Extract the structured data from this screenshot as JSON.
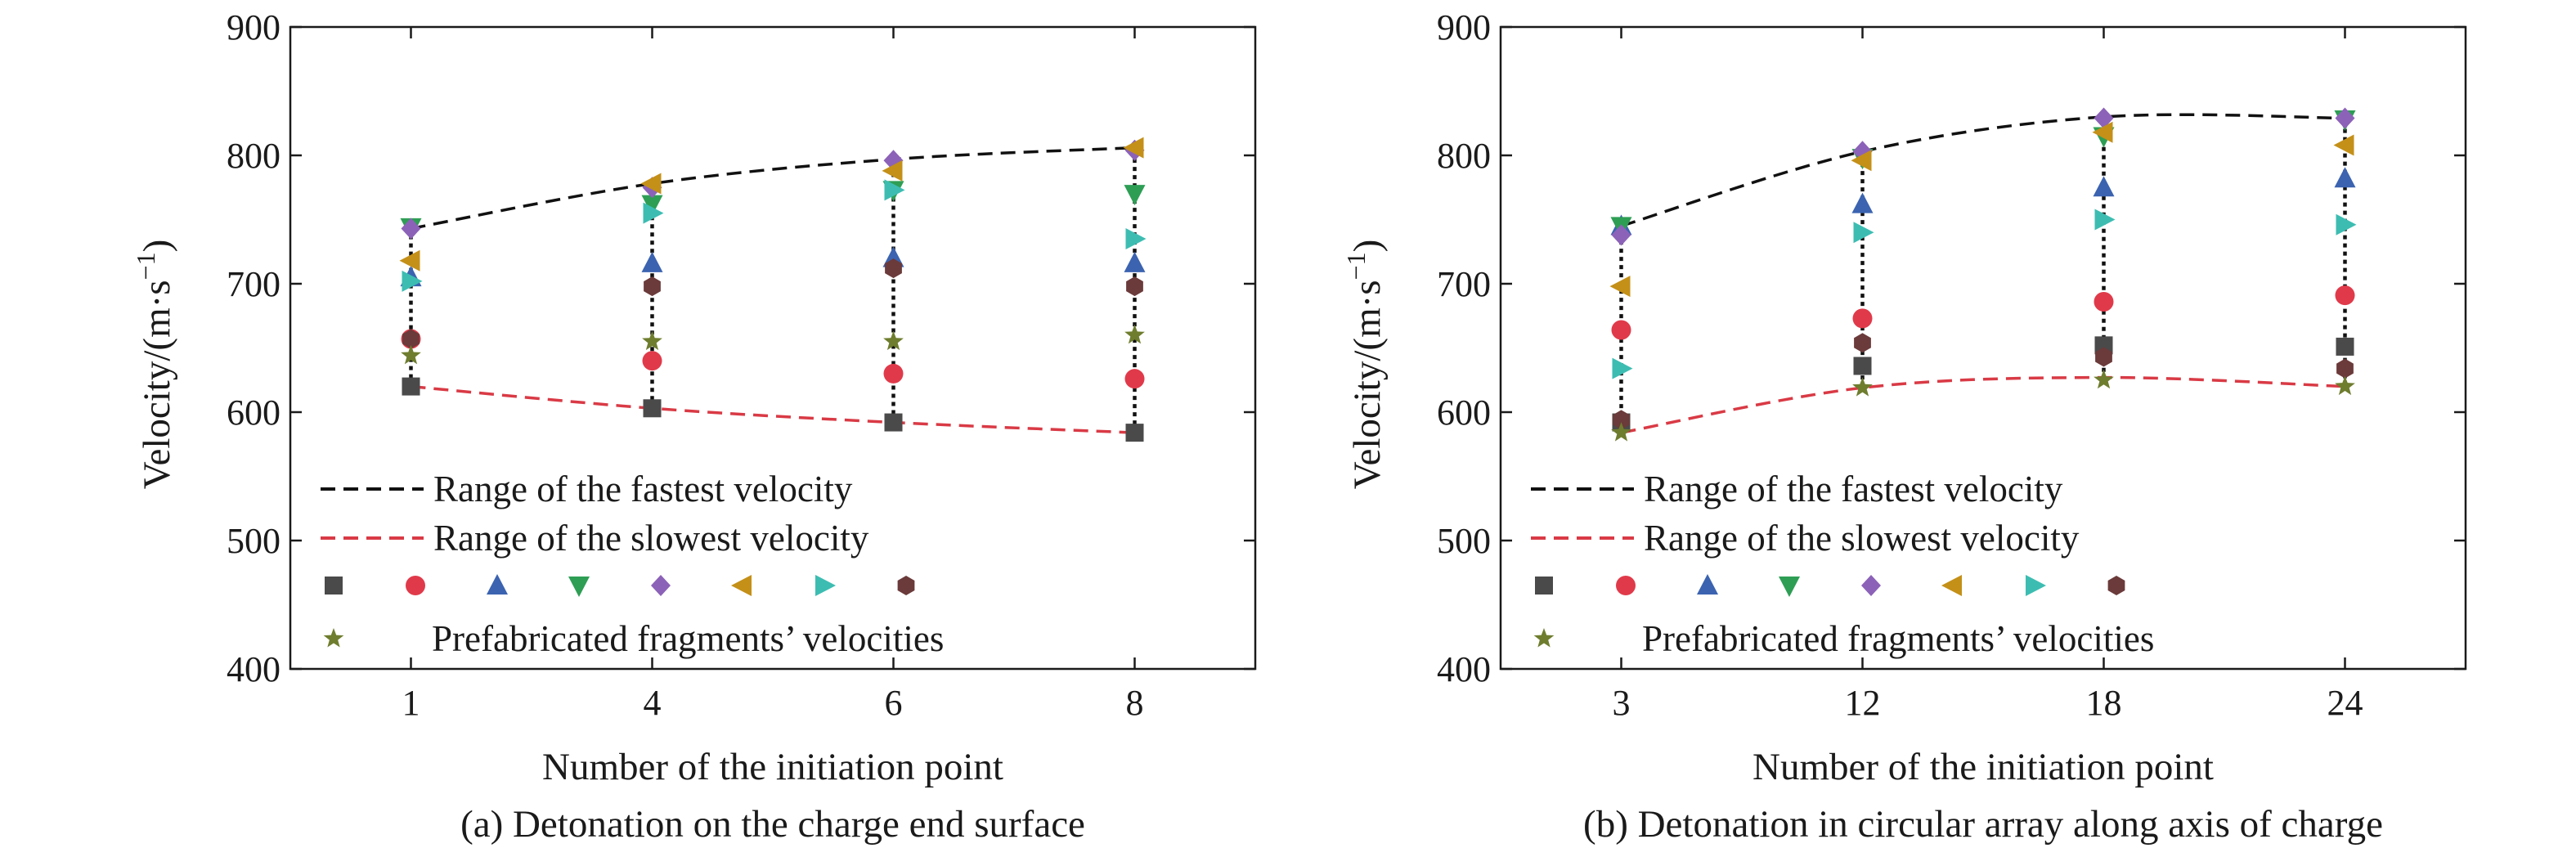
{
  "chart_data": [
    {
      "type": "scatter",
      "id": "a",
      "caption": "(a) Detonation on the charge end surface",
      "xlabel": "Number of the initiation point",
      "ylabel_main": "Velocity/(m·s",
      "ylabel_sup": "−1",
      "ylabel_close": ")",
      "ylim": [
        400,
        900
      ],
      "yticks": [
        "400",
        "500",
        "600",
        "700",
        "800",
        "900"
      ],
      "categories": [
        "1",
        "4",
        "6",
        "8"
      ],
      "series": [
        {
          "marker": "square",
          "color": "#4a4a4a",
          "values": [
            620,
            603,
            592,
            584
          ]
        },
        {
          "marker": "circle",
          "color": "#e03a4a",
          "values": [
            657,
            640,
            630,
            626
          ]
        },
        {
          "marker": "tri-up",
          "color": "#3b63b0",
          "values": [
            705,
            716,
            720,
            716
          ]
        },
        {
          "marker": "tri-down",
          "color": "#2e9e55",
          "values": [
            744,
            762,
            773,
            770
          ]
        },
        {
          "marker": "diamond",
          "color": "#8c62b8",
          "values": [
            743,
            775,
            796,
            804
          ]
        },
        {
          "marker": "tri-left",
          "color": "#c49018",
          "values": [
            718,
            778,
            788,
            806
          ]
        },
        {
          "marker": "tri-right",
          "color": "#3dbdb2",
          "values": [
            702,
            755,
            773,
            735
          ]
        },
        {
          "marker": "hexagon",
          "color": "#6b3a3a",
          "values": [
            657,
            698,
            712,
            698
          ]
        },
        {
          "marker": "star",
          "color": "#6e7d2e",
          "values": [
            644,
            655,
            655,
            660
          ]
        }
      ],
      "fastest_range": [
        743,
        778,
        797,
        806
      ],
      "slowest_range": [
        620,
        603,
        592,
        584
      ]
    },
    {
      "type": "scatter",
      "id": "b",
      "caption": "(b) Detonation in circular array along axis of charge",
      "xlabel": "Number of the initiation point",
      "ylabel_main": "Velocity/(m·s",
      "ylabel_sup": "−1",
      "ylabel_close": ")",
      "ylim": [
        400,
        900
      ],
      "yticks": [
        "400",
        "500",
        "600",
        "700",
        "800",
        "900"
      ],
      "categories": [
        "3",
        "12",
        "18",
        "24"
      ],
      "series": [
        {
          "marker": "square",
          "color": "#4a4a4a",
          "values": [
            592,
            636,
            652,
            651
          ]
        },
        {
          "marker": "circle",
          "color": "#e03a4a",
          "values": [
            664,
            673,
            686,
            691
          ]
        },
        {
          "marker": "tri-up",
          "color": "#3b63b0",
          "values": [
            745,
            762,
            775,
            782
          ]
        },
        {
          "marker": "tri-down",
          "color": "#2e9e55",
          "values": [
            745,
            798,
            815,
            828
          ]
        },
        {
          "marker": "diamond",
          "color": "#8c62b8",
          "values": [
            738,
            803,
            829,
            829
          ]
        },
        {
          "marker": "tri-left",
          "color": "#c49018",
          "values": [
            698,
            796,
            818,
            808
          ]
        },
        {
          "marker": "tri-right",
          "color": "#3dbdb2",
          "values": [
            634,
            740,
            750,
            746
          ]
        },
        {
          "marker": "hexagon",
          "color": "#6b3a3a",
          "values": [
            594,
            654,
            643,
            634
          ]
        },
        {
          "marker": "star",
          "color": "#6e7d2e",
          "values": [
            584,
            619,
            625,
            620
          ]
        }
      ],
      "fastest_range": [
        745,
        803,
        830,
        829
      ],
      "slowest_range": [
        584,
        619,
        627,
        620
      ]
    }
  ],
  "legend": {
    "fastest_label": "Range of the fastest velocity",
    "slowest_label": "Range of the slowest velocity",
    "fragments_label": "Prefabricated fragments’ velocities",
    "fastest_color": "#111111",
    "slowest_color": "#d93a45",
    "stem_color": "#111111"
  }
}
